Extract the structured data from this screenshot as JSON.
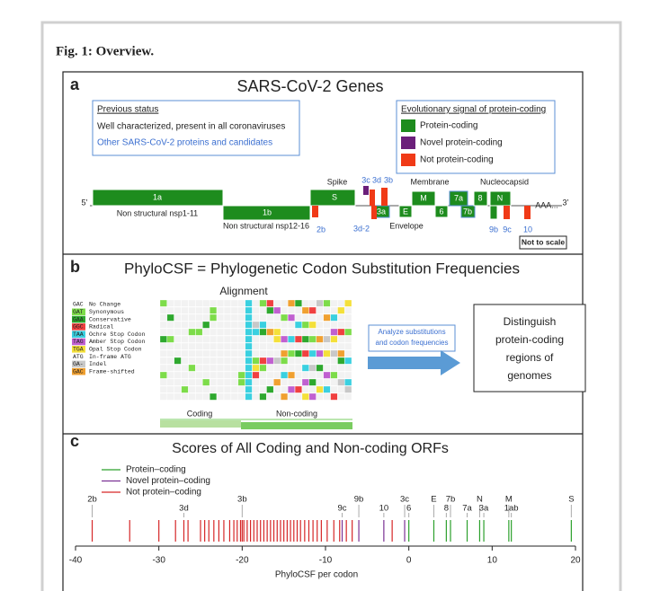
{
  "figure": {
    "title": "Fig. 1: Overview."
  },
  "panel_a": {
    "letter": "a",
    "title": "SARS-CoV-2 Genes",
    "previous_status": {
      "heading": "Previous status",
      "well": "Well characterized, present in all coronaviruses",
      "other": "Other SARS-CoV-2 proteins and candidates"
    },
    "legend": {
      "heading": "Evolutionary signal of protein-coding",
      "items": [
        {
          "label": "Protein-coding",
          "color": "#1e8c1e"
        },
        {
          "label": "Novel protein-coding",
          "color": "#6b1f7a"
        },
        {
          "label": "Not protein-coding",
          "color": "#f03a17"
        }
      ]
    },
    "genome": {
      "five": "5’",
      "three": "3’",
      "polya": "AAA...",
      "labels": {
        "g1a": "1a",
        "nsp1": "Non structural nsp1-11",
        "g1b": "1b",
        "nsp12": "Non structural nsp12-16",
        "g2b": "2b",
        "spike": "Spike",
        "s": "S",
        "g3c": "3c",
        "g3d": "3d",
        "g3b": "3b",
        "g3a": "3a",
        "g3d2": "3d-2",
        "e": "E",
        "envelope": "Envelope",
        "membrane": "Membrane",
        "m": "M",
        "g6": "6",
        "g7a": "7a",
        "g7b": "7b",
        "g8": "8",
        "n": "N",
        "nucleocapsid": "Nucleocapsid",
        "g9b": "9b",
        "g9c": "9c",
        "g10": "10"
      }
    },
    "scale_note": "Not to scale"
  },
  "panel_b": {
    "letter": "b",
    "title": "PhyloCSF = Phylogenetic Codon Substitution Frequencies",
    "alignment_label": "Alignment",
    "codes": [
      {
        "code": "GAC",
        "label": "No Change",
        "color": "#ffffff"
      },
      {
        "code": "GAT",
        "label": "Synonymous",
        "color": "#7ddc4a"
      },
      {
        "code": "GAA",
        "label": "Conservative",
        "color": "#2ea82e"
      },
      {
        "code": "GGC",
        "label": "Radical",
        "color": "#f04040"
      },
      {
        "code": "TAA",
        "label": "Ochre Stop Codon",
        "color": "#3ad0e0"
      },
      {
        "code": "TAG",
        "label": "Amber Stop Codon",
        "color": "#c060d0"
      },
      {
        "code": "TGA",
        "label": "Opal Stop Codon",
        "color": "#f4e03a"
      },
      {
        "code": "ATG",
        "label": "In-frame ATG",
        "color": "#ffffff"
      },
      {
        "code": "GA-",
        "label": "Indel",
        "color": "#c8c8c8"
      },
      {
        "code": "GAC",
        "label": "Frame-shifted",
        "color": "#f0a030"
      }
    ],
    "coding": "Coding",
    "noncoding": "Non-coding",
    "analyze": [
      "Analyze substitutions",
      "and codon frequencies"
    ],
    "result": [
      "Distinguish",
      "protein-coding",
      "regions of",
      "genomes"
    ]
  },
  "panel_c": {
    "letter": "c",
    "title": "Scores of All Coding and Non-coding ORFs",
    "legend": [
      {
        "label": "Protein–coding",
        "color": "#2ca02c"
      },
      {
        "label": "Novel protein–coding",
        "color": "#7b3294"
      },
      {
        "label": "Not protein–coding",
        "color": "#d62728"
      }
    ],
    "label_rows": [
      [
        {
          "label": "2b",
          "score": -38,
          "color": "#d62728"
        },
        {
          "label": "3b",
          "score": -20,
          "color": "#d62728"
        },
        {
          "label": "9b",
          "score": -6,
          "color": "#7b3294"
        },
        {
          "label": "3c",
          "score": -0.5,
          "color": "#7b3294"
        },
        {
          "label": "E",
          "score": 3,
          "color": "#2ca02c"
        },
        {
          "label": "7b",
          "score": 5,
          "color": "#2ca02c"
        },
        {
          "label": "N",
          "score": 8.5,
          "color": "#2ca02c"
        },
        {
          "label": "M",
          "score": 12,
          "color": "#2ca02c"
        },
        {
          "label": "S",
          "score": 19.5,
          "color": "#2ca02c"
        }
      ],
      [
        {
          "label": "3d",
          "score": -27,
          "color": "#d62728"
        },
        {
          "label": "9c",
          "score": -8,
          "color": "#7b3294"
        },
        {
          "label": "10",
          "score": -3,
          "color": "#7b3294"
        },
        {
          "label": "6",
          "score": 0,
          "color": "#2ca02c"
        },
        {
          "label": "8",
          "score": 4.5,
          "color": "#2ca02c"
        },
        {
          "label": "7a",
          "score": 7,
          "color": "#2ca02c"
        },
        {
          "label": "3a",
          "score": 9,
          "color": "#2ca02c"
        },
        {
          "label": "1ab",
          "score": 12.3,
          "color": "#2ca02c"
        }
      ]
    ],
    "other_scores": [
      -33.5,
      -30,
      -28,
      -26.5,
      -25,
      -24.5,
      -24,
      -23.4,
      -22.8,
      -22.2,
      -21.5,
      -21,
      -20.6,
      -20.2,
      -19.8,
      -19.4,
      -19,
      -18.6,
      -18.2,
      -17.8,
      -17.4,
      -17,
      -16.6,
      -16.2,
      -15.8,
      -15.4,
      -15,
      -14.6,
      -14.2,
      -13.8,
      -13.4,
      -13,
      -12.5,
      -12,
      -11.5,
      -11,
      -10.5,
      -9.8,
      -9,
      -8.3,
      -7.5,
      -6.8,
      -2
    ],
    "other_color": "#d62728",
    "xlim": [
      -40,
      20
    ],
    "xticks": [
      -40,
      -30,
      -20,
      -10,
      0,
      10,
      20
    ],
    "xlabel": "PhyloCSF per codon"
  }
}
